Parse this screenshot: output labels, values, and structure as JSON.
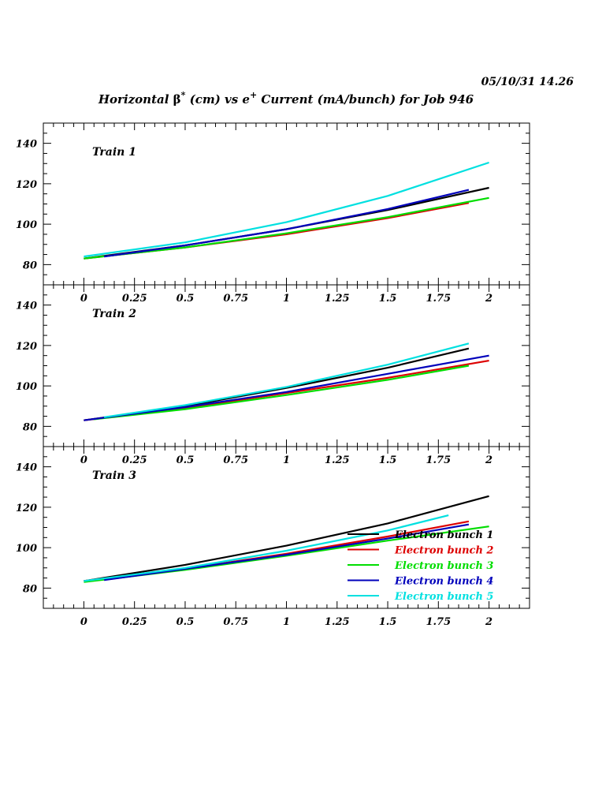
{
  "header": {
    "timestamp": "05/10/31   14.26",
    "title_prefix": "Horizontal ",
    "title_beta": "β",
    "title_beta_sup": "*",
    "title_mid": " (cm) vs e",
    "title_e_sup": "+",
    "title_suffix": " Current (mA/bunch) for Job 946"
  },
  "chart_data": {
    "type": "line",
    "xlim": [
      -0.2,
      2.2
    ],
    "ylim": [
      70,
      150
    ],
    "x_ticks": [
      0,
      0.25,
      0.5,
      0.75,
      1,
      1.25,
      1.5,
      1.75,
      2
    ],
    "x_tick_labels": [
      "0",
      "0.25",
      "0.5",
      "0.75",
      "1",
      "1.25",
      "1.5",
      "1.75",
      "2"
    ],
    "y_ticks": [
      80,
      100,
      120,
      140
    ],
    "y_tick_labels": [
      "80",
      "100",
      "120",
      "140"
    ],
    "legend": {
      "placement": "bottom-right of panel 3",
      "entries": [
        {
          "name": "Electron bunch 1",
          "color": "#000000"
        },
        {
          "name": "Electron bunch 2",
          "color": "#dd0000"
        },
        {
          "name": "Electron bunch 3",
          "color": "#00dd00"
        },
        {
          "name": "Electron bunch 4",
          "color": "#0000bb"
        },
        {
          "name": "Electron bunch 5",
          "color": "#00e0e0"
        }
      ]
    },
    "panels": [
      {
        "label": "Train 1",
        "series": [
          {
            "name": "Electron bunch 1",
            "color": "#000000",
            "x": [
              0,
              0.5,
              1,
              1.5,
              2
            ],
            "y": [
              83,
              89.5,
              97.5,
              107,
              118
            ]
          },
          {
            "name": "Electron bunch 2",
            "color": "#dd0000",
            "x": [
              0,
              0.5,
              1,
              1.5,
              1.9
            ],
            "y": [
              83,
              88.5,
              95,
              103,
              110.5
            ]
          },
          {
            "name": "Electron bunch 3",
            "color": "#00dd00",
            "x": [
              0,
              0.5,
              1,
              1.5,
              2
            ],
            "y": [
              83,
              88.5,
              95.5,
              103.5,
              113
            ]
          },
          {
            "name": "Electron bunch 4",
            "color": "#0000bb",
            "x": [
              0.1,
              0.5,
              1,
              1.5,
              1.9
            ],
            "y": [
              84,
              89.5,
              97.5,
              107.5,
              117
            ]
          },
          {
            "name": "Electron bunch 5",
            "color": "#00e0e0",
            "x": [
              0,
              0.5,
              1,
              1.5,
              2
            ],
            "y": [
              84,
              91,
              101,
              114,
              130.5
            ]
          }
        ]
      },
      {
        "label": "Train 2",
        "series": [
          {
            "name": "Electron bunch 1",
            "color": "#000000",
            "x": [
              0,
              0.5,
              1,
              1.5,
              1.9
            ],
            "y": [
              83,
              90,
              99,
              109,
              118.5
            ]
          },
          {
            "name": "Electron bunch 2",
            "color": "#dd0000",
            "x": [
              0,
              0.5,
              1,
              1.5,
              2
            ],
            "y": [
              83,
              89,
              96.5,
              104,
              112.5
            ]
          },
          {
            "name": "Electron bunch 3",
            "color": "#00dd00",
            "x": [
              0.05,
              0.5,
              1,
              1.5,
              1.9
            ],
            "y": [
              83.5,
              88.5,
              95.5,
              103,
              110
            ]
          },
          {
            "name": "Electron bunch 4",
            "color": "#0000bb",
            "x": [
              0,
              0.5,
              1,
              1.5,
              2
            ],
            "y": [
              83,
              89.5,
              97,
              106,
              115
            ]
          },
          {
            "name": "Electron bunch 5",
            "color": "#00e0e0",
            "x": [
              0.1,
              0.5,
              1,
              1.5,
              1.9
            ],
            "y": [
              84.5,
              90.5,
              99.5,
              110.5,
              121
            ]
          }
        ]
      },
      {
        "label": "Train 3",
        "series": [
          {
            "name": "Electron bunch 1",
            "color": "#000000",
            "x": [
              0,
              0.5,
              1,
              1.5,
              2
            ],
            "y": [
              83.5,
              91.5,
              101,
              112,
              125.5
            ]
          },
          {
            "name": "Electron bunch 2",
            "color": "#dd0000",
            "x": [
              0,
              0.5,
              1,
              1.5,
              1.9
            ],
            "y": [
              83.5,
              89.5,
              97,
              105.5,
              113
            ]
          },
          {
            "name": "Electron bunch 3",
            "color": "#00dd00",
            "x": [
              0,
              0.5,
              1,
              1.5,
              2
            ],
            "y": [
              83,
              89,
              96,
              103.5,
              110.5
            ]
          },
          {
            "name": "Electron bunch 4",
            "color": "#0000bb",
            "x": [
              0.1,
              0.5,
              1,
              1.5,
              1.9
            ],
            "y": [
              84,
              89.5,
              96.5,
              104.5,
              111.5
            ]
          },
          {
            "name": "Electron bunch 5",
            "color": "#00e0e0",
            "x": [
              0,
              0.5,
              1,
              1.5,
              1.8
            ],
            "y": [
              83.5,
              90,
              98.5,
              108.5,
              116
            ]
          }
        ]
      }
    ]
  }
}
